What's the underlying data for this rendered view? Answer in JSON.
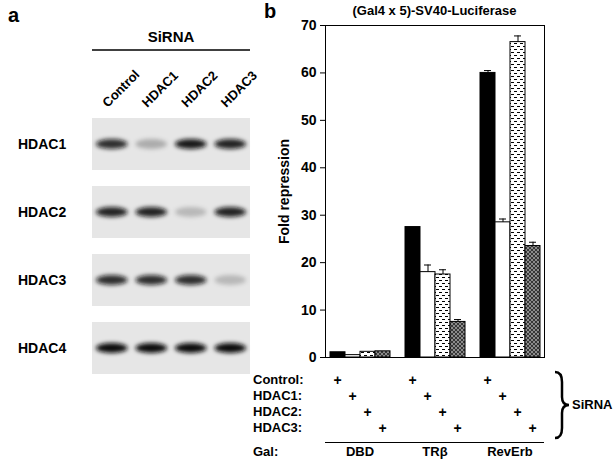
{
  "blot": {
    "panel_label": "a",
    "header": "SiRNA",
    "lanes": [
      "Control",
      "HDAC1",
      "HDAC2",
      "HDAC3"
    ],
    "rows": [
      {
        "label": "HDAC1",
        "band_intensity": [
          0.85,
          0.25,
          0.95,
          0.9
        ]
      },
      {
        "label": "HDAC2",
        "band_intensity": [
          0.9,
          0.9,
          0.2,
          0.9
        ]
      },
      {
        "label": "HDAC3",
        "band_intensity": [
          0.85,
          0.85,
          0.85,
          0.2
        ]
      },
      {
        "label": "HDAC4",
        "band_intensity": [
          1,
          1,
          1,
          1
        ]
      }
    ]
  },
  "chart_data": {
    "type": "bar",
    "panel_label": "b",
    "title": "(Gal4 x 5)-SV40-Luciferase",
    "y_label": "Fold repression",
    "categories": [
      "DBD",
      "TRβ",
      "RevErb"
    ],
    "category_label": "Gal:",
    "series_label": "SiRNA",
    "row_mark": "+",
    "series": [
      {
        "name": "Control:",
        "color": "#000000",
        "marker": "solid",
        "values": [
          1.1,
          27.5,
          60
        ],
        "errors": [
          0,
          0,
          0.5
        ]
      },
      {
        "name": "HDAC1:",
        "color": "#ffffff",
        "marker": "solid",
        "values": [
          0.5,
          18,
          28.5
        ],
        "errors": [
          0,
          1.5,
          0.7
        ]
      },
      {
        "name": "HDAC2:",
        "color": "#ffffff",
        "marker": "dashes",
        "values": [
          1.2,
          17.5,
          66.5
        ],
        "errors": [
          0,
          1,
          1.3
        ]
      },
      {
        "name": "HDAC3:",
        "color": "#8c8c8c",
        "marker": "crosshatch",
        "values": [
          1.3,
          7.5,
          23.5
        ],
        "errors": [
          0,
          0.5,
          0.8
        ]
      }
    ],
    "ylim": [
      0,
      70
    ],
    "yticks": [
      0,
      10,
      20,
      30,
      40,
      50,
      60,
      70
    ],
    "grid": false,
    "tick_labels": "y"
  }
}
